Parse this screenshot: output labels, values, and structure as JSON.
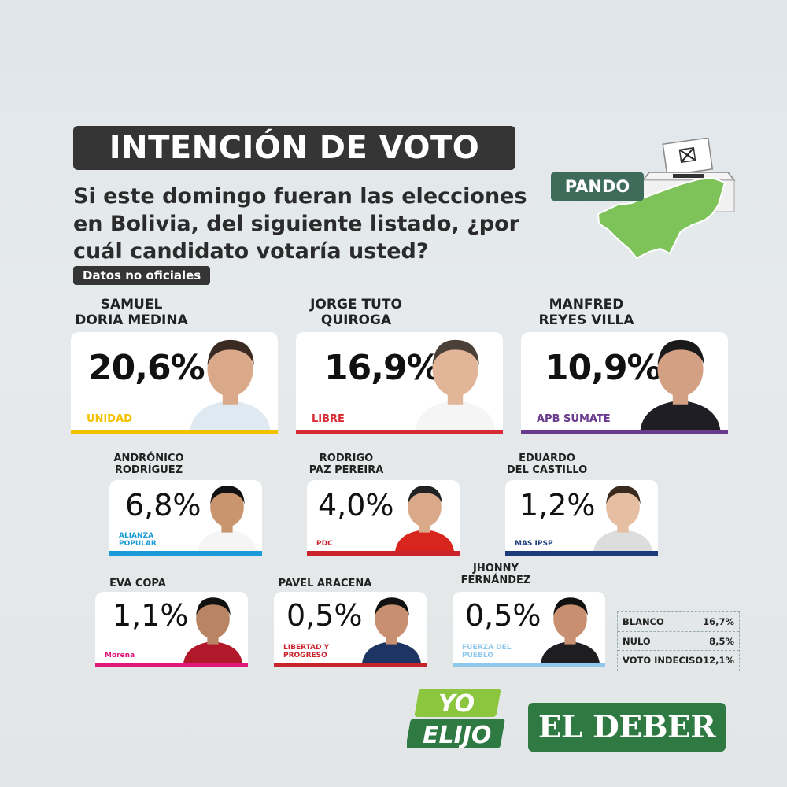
{
  "header": {
    "title": "INTENCIÓN DE VOTO",
    "question": "Si este domingo fueran las elecciones en Bolivia, del siguiente listado, ¿por cuál candidato votaría usted?",
    "note": "Datos no oficiales",
    "region": "PANDO"
  },
  "candidates": [
    {
      "name_line1": "SAMUEL",
      "name_line2": "DORIA MEDINA",
      "percent": "20,6%",
      "party_logo": "UNIDAD",
      "bar_color": "#f2c200"
    },
    {
      "name_line1": "JORGE TUTO",
      "name_line2": "QUIROGA",
      "percent": "16,9%",
      "party_logo": "LIBRE",
      "bar_color": "#d62a35"
    },
    {
      "name_line1": "MANFRED",
      "name_line2": "REYES VILLA",
      "percent": "10,9%",
      "party_logo": "APB SÚMATE",
      "bar_color": "#6a3a8c"
    },
    {
      "name_line1": "ANDRÓNICO",
      "name_line2": "RODRÍGUEZ",
      "percent": "6,8%",
      "party_logo": "ALIANZA POPULAR",
      "bar_color": "#1a9ad6"
    },
    {
      "name_line1": "RODRIGO",
      "name_line2": "PAZ PEREIRA",
      "percent": "4,0%",
      "party_logo": "PDC",
      "bar_color": "#c9242c"
    },
    {
      "name_line1": "EDUARDO",
      "name_line2": "DEL CASTILLO",
      "percent": "1,2%",
      "party_logo": "MAS IPSP",
      "bar_color": "#1c3b7a"
    },
    {
      "name_line1": "EVA COPA",
      "name_line2": "",
      "percent": "1,1%",
      "party_logo": "Morena",
      "bar_color": "#e0187a"
    },
    {
      "name_line1": "PAVEL ARACENA",
      "name_line2": "",
      "percent": "0,5%",
      "party_logo": "LIBERTAD Y PROGRESO",
      "bar_color": "#c9242c"
    },
    {
      "name_line1": "JHONNY",
      "name_line2": "FERNÁNDEZ",
      "percent": "0,5%",
      "party_logo": "FUERZA DEL PUEBLO",
      "bar_color": "#8fc8ec"
    }
  ],
  "other_results": [
    {
      "label": "BLANCO",
      "value": "16,7%"
    },
    {
      "label": "NULO",
      "value": "8,5%"
    },
    {
      "label": "VOTO INDECISO",
      "value": "12,1%"
    }
  ],
  "branding": {
    "yo_elijo": [
      "YO",
      "ELIJO"
    ],
    "el_deber": "EL DEBER"
  },
  "icons": {
    "ballot_box": "ballot-box-icon",
    "map": "pando-map-icon"
  },
  "colors": {
    "title_bg": "#353535",
    "map_green": "#7ec25a",
    "brand_green": "#2f7a43"
  }
}
